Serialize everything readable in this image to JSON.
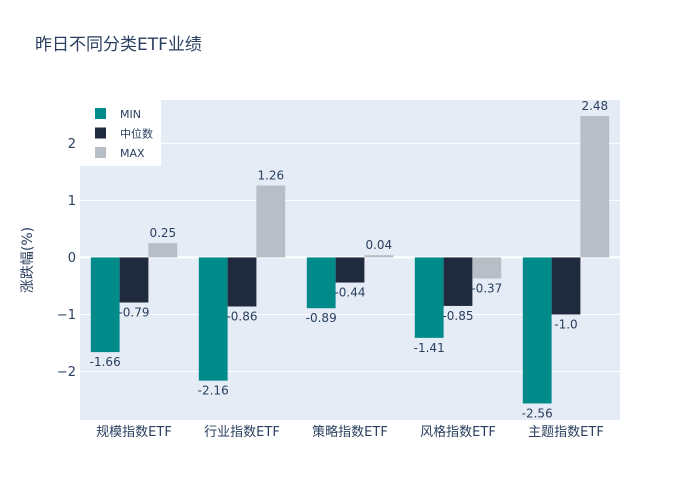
{
  "chart_data": {
    "type": "bar",
    "title": "昨日不同分类ETF业绩",
    "xlabel": "",
    "ylabel": "涨跌幅(%)",
    "ylim": [
      -2.85,
      2.76
    ],
    "yticks": [
      -2,
      -1,
      0,
      1,
      2
    ],
    "ytick_labels": [
      "−2",
      "−1",
      "0",
      "1",
      "2"
    ],
    "categories": [
      "规模指数ETF",
      "行业指数ETF",
      "策略指数ETF",
      "风格指数ETF",
      "主题指数ETF"
    ],
    "series": [
      {
        "name": "MIN",
        "color": "#008b8b",
        "values": [
          -1.66,
          -2.16,
          -0.89,
          -1.41,
          -2.56
        ],
        "labels": [
          "-1.66",
          "-2.16",
          "-0.89",
          "-1.41",
          "-2.56"
        ]
      },
      {
        "name": "中位数",
        "color": "#1f2a3c",
        "values": [
          -0.79,
          -0.86,
          -0.44,
          -0.85,
          -1.0
        ],
        "labels": [
          "-0.79",
          "-0.86",
          "-0.44",
          "-0.85",
          "-1.0"
        ]
      },
      {
        "name": "MAX",
        "color": "#b8bec6",
        "values": [
          0.25,
          1.26,
          0.04,
          -0.37,
          2.48
        ],
        "labels": [
          "0.25",
          "1.26",
          "0.04",
          "-0.37",
          "2.48"
        ]
      }
    ],
    "grid": true,
    "legend_position": "top-left",
    "plot_background": "#e5ecf6"
  }
}
